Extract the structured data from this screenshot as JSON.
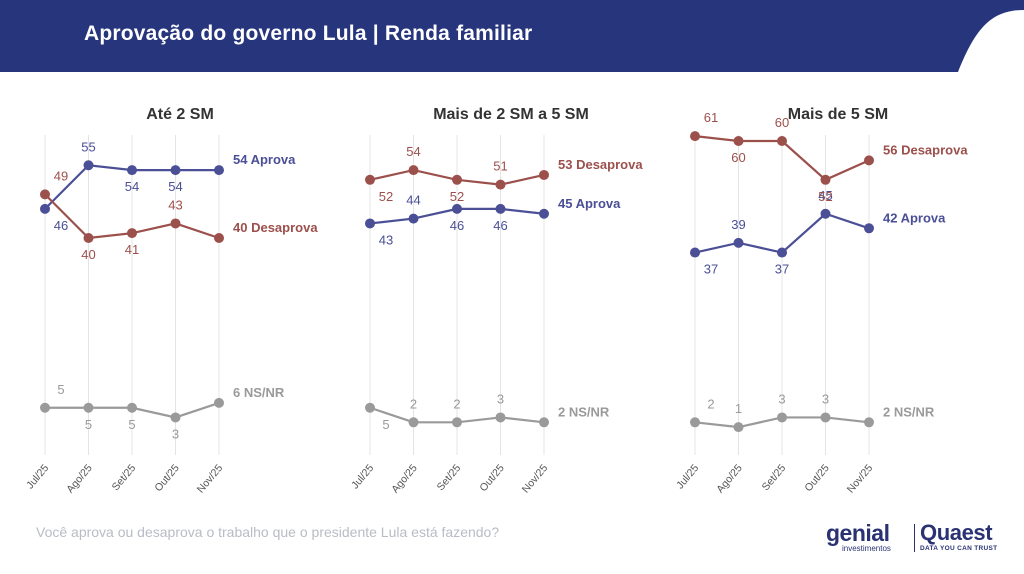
{
  "header": {
    "title": "Aprovação do governo Lula | Renda familiar"
  },
  "question": "Você aprova ou desaprova o trabalho que o presidente Lula está fazendo?",
  "logos": {
    "genial": "genial",
    "genial_sub": "investimentos",
    "quaest": "Quaest",
    "quaest_tagline": "DATA YOU CAN TRUST"
  },
  "colors": {
    "header": "#27357c",
    "aprova": "#4a4f96",
    "desaprova": "#9c504c",
    "nsnr": "#9a9a9a",
    "grid": "#e4e4e4"
  },
  "chart_data": [
    {
      "type": "line",
      "title": "Até 2 SM",
      "x": [
        "Jul/25",
        "Ago/25",
        "Set/25",
        "Out/25",
        "Nov/25"
      ],
      "series": [
        {
          "name": "Aprova",
          "values": [
            46,
            55,
            54,
            54,
            54
          ],
          "end_label": "54 Aprova"
        },
        {
          "name": "Desaprova",
          "values": [
            49,
            40,
            41,
            43,
            40
          ],
          "end_label": "40 Desaprova"
        },
        {
          "name": "NS/NR",
          "values": [
            5,
            5,
            5,
            3,
            6
          ],
          "end_label": "6 NS/NR"
        }
      ]
    },
    {
      "type": "line",
      "title": "Mais de 2 SM a 5 SM",
      "x": [
        "Jul/25",
        "Ago/25",
        "Set/25",
        "Out/25",
        "Nov/25"
      ],
      "series": [
        {
          "name": "Aprova",
          "values": [
            43,
            44,
            46,
            46,
            45
          ],
          "end_label": "45 Aprova"
        },
        {
          "name": "Desaprova",
          "values": [
            52,
            54,
            52,
            51,
            53
          ],
          "end_label": "53 Desaprova"
        },
        {
          "name": "NS/NR",
          "values": [
            5,
            2,
            2,
            3,
            2
          ],
          "end_label": "2 NS/NR"
        }
      ]
    },
    {
      "type": "line",
      "title": "Mais de 5 SM",
      "x": [
        "Jul/25",
        "Ago/25",
        "Set/25",
        "Out/25",
        "Nov/25"
      ],
      "series": [
        {
          "name": "Aprova",
          "values": [
            37,
            39,
            37,
            45,
            42
          ],
          "end_label": "42 Aprova"
        },
        {
          "name": "Desaprova",
          "values": [
            61,
            60,
            60,
            52,
            56
          ],
          "end_label": "56 Desaprova"
        },
        {
          "name": "NS/NR",
          "values": [
            2,
            1,
            3,
            3,
            2
          ],
          "end_label": "2 NS/NR"
        }
      ]
    }
  ]
}
